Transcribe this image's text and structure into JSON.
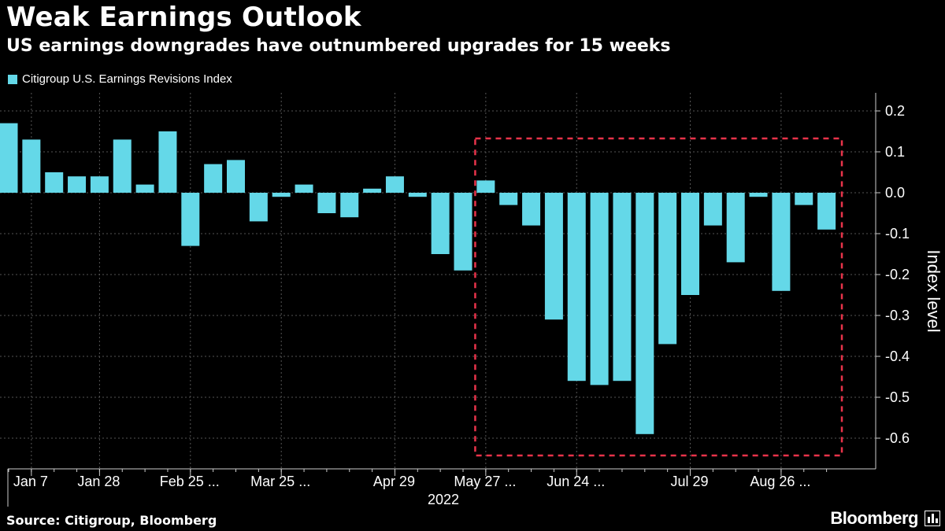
{
  "header": {
    "title": "Weak Earnings Outlook",
    "subtitle": "US earnings downgrades have outnumbered upgrades for 15 weeks"
  },
  "footer": {
    "source": "Source: Citigroup, Bloomberg",
    "brand": "Bloomberg"
  },
  "colors": {
    "bar": "#64d8e8",
    "highlight_box": "#e8334a",
    "grid": "#555555",
    "axis": "#cccccc"
  },
  "chart_data": {
    "type": "bar",
    "title": "Weak Earnings Outlook",
    "subtitle": "US earnings downgrades have outnumbered upgrades for 15 weeks",
    "xlabel": "2022",
    "ylabel": "Index level",
    "ylim": [
      -0.65,
      0.22
    ],
    "yticks": [
      0.2,
      0.1,
      0.0,
      -0.1,
      -0.2,
      -0.3,
      -0.4,
      -0.5,
      -0.6
    ],
    "ytick_labels": [
      "0.2",
      "0.1",
      "0.0",
      "-0.1",
      "-0.2",
      "-0.3",
      "-0.4",
      "-0.5",
      "-0.6"
    ],
    "grid": true,
    "legend_position": "top-left",
    "series": [
      {
        "name": "Citigroup U.S. Earnings Revisions Index",
        "values": [
          0.17,
          0.13,
          0.05,
          0.04,
          0.04,
          0.13,
          0.02,
          0.15,
          -0.13,
          0.07,
          0.08,
          -0.07,
          -0.01,
          0.02,
          -0.05,
          -0.06,
          0.01,
          0.04,
          -0.01,
          -0.15,
          -0.19,
          0.03,
          -0.03,
          -0.08,
          -0.31,
          -0.46,
          -0.47,
          -0.46,
          -0.59,
          -0.37,
          -0.25,
          -0.08,
          -0.17,
          -0.01,
          -0.24,
          -0.03,
          -0.09
        ]
      }
    ],
    "x_tick_labels": [
      {
        "label": "Jan 7",
        "index": 1
      },
      {
        "label": "Jan 28",
        "index": 4
      },
      {
        "label": "Feb 25 ...",
        "index": 8
      },
      {
        "label": "Mar 25 ...",
        "index": 12
      },
      {
        "label": "Apr 29",
        "index": 17
      },
      {
        "label": "May 27 ...",
        "index": 21
      },
      {
        "label": "Jun 24 ...",
        "index": 25
      },
      {
        "label": "Jul 29",
        "index": 30
      },
      {
        "label": "Aug 26 ...",
        "index": 34
      }
    ],
    "highlight": {
      "start_index": 21,
      "end_index": 36,
      "description": "downgrades outnumbered upgrades"
    }
  }
}
